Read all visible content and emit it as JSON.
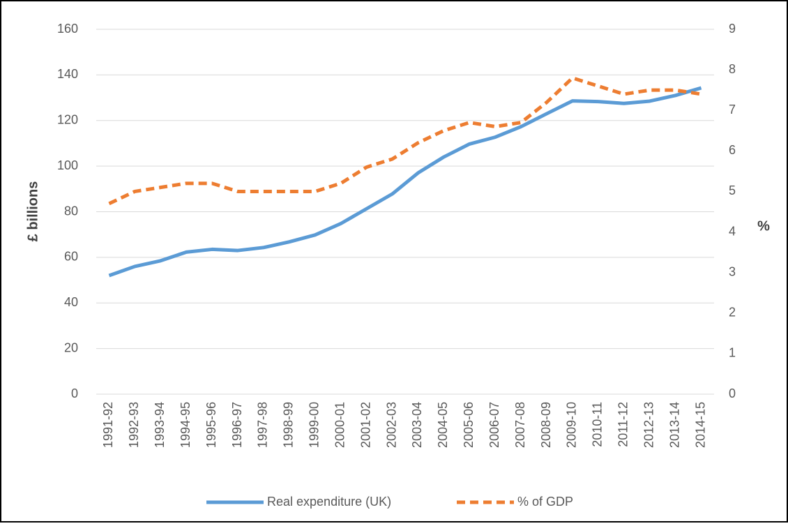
{
  "chart_data": {
    "type": "line",
    "y_label": "£ billions",
    "y2_label": "%",
    "categories": [
      "1991-92",
      "1992-93",
      "1993-94",
      "1994-95",
      "1995-96",
      "1996-97",
      "1997-98",
      "1998-99",
      "1999-00",
      "2000-01",
      "2001-02",
      "2002-03",
      "2003-04",
      "2004-05",
      "2005-06",
      "2006-07",
      "2007-08",
      "2008-09",
      "2009-10",
      "2010-11",
      "2011-12",
      "2012-13",
      "2013-14",
      "2014-15"
    ],
    "series": [
      {
        "name": "Real expenditure (UK)",
        "color": "#5b9bd5",
        "values": [
          52,
          56,
          58.5,
          62.3,
          63.5,
          63,
          64.3,
          66.8,
          69.8,
          74.8,
          81.3,
          87.8,
          97,
          104,
          109.7,
          112.7,
          117.3,
          123,
          128.6,
          128.3,
          127.5,
          128.5,
          131,
          134.3
        ]
      },
      {
        "name": "% of GDP",
        "color": "#ed7d31",
        "axis": "y2",
        "dashed": true,
        "values": [
          4.7,
          5.0,
          5.1,
          5.2,
          5.2,
          5.0,
          5.0,
          5.0,
          5.0,
          5.2,
          5.6,
          5.8,
          6.2,
          6.5,
          6.7,
          6.6,
          6.7,
          7.2,
          7.8,
          7.6,
          7.4,
          7.5,
          7.5,
          7.4
        ]
      }
    ],
    "ylim": [
      0,
      160
    ],
    "yticks": [
      0,
      20,
      40,
      60,
      80,
      100,
      120,
      140,
      160
    ],
    "y2lim": [
      0,
      9
    ],
    "y2ticks": [
      0,
      1,
      2,
      3,
      4,
      5,
      6,
      7,
      8,
      9
    ],
    "grid": true,
    "legend": "bottom"
  }
}
